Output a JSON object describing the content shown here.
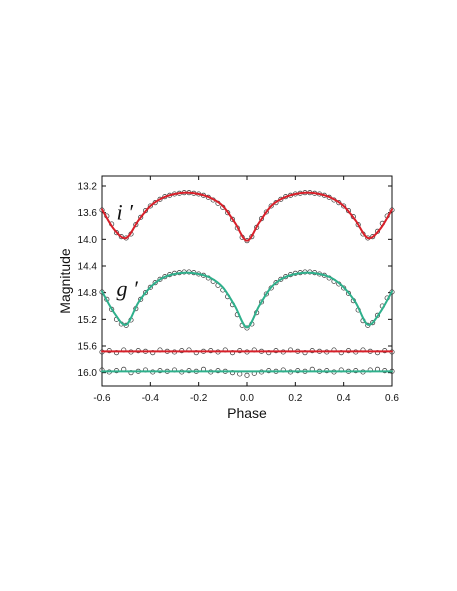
{
  "chart_data": {
    "type": "scatter",
    "title": "",
    "xlabel": "Phase",
    "ylabel": "Magnitude",
    "xlim": [
      -0.6,
      0.6
    ],
    "ylim": [
      16.2,
      13.05
    ],
    "y_inverted": true,
    "grid": false,
    "x_ticks": [
      "-0.6",
      "-0.4",
      "-0.2",
      "0.0",
      "0.2",
      "0.4",
      "0.6"
    ],
    "y_ticks": [
      "13.2",
      "13.6",
      "14.0",
      "14.4",
      "14.8",
      "15.2",
      "15.6",
      "16.0"
    ],
    "annotations": [
      {
        "text": "i ′",
        "x": -0.54,
        "y": 13.7
      },
      {
        "text": "g ′",
        "x": -0.54,
        "y": 14.85
      }
    ],
    "series": [
      {
        "color": "#d8202a",
        "role": "light curve model",
        "x": [
          -0.6,
          -0.55,
          -0.5,
          -0.45,
          -0.4,
          -0.35,
          -0.3,
          -0.25,
          -0.2,
          -0.15,
          -0.1,
          -0.05,
          0.0,
          0.05,
          0.1,
          0.15,
          0.2,
          0.25,
          0.3,
          0.35,
          0.4,
          0.45,
          0.5,
          0.55,
          0.6
        ],
        "y": [
          13.55,
          13.85,
          13.98,
          13.72,
          13.5,
          13.38,
          13.32,
          13.3,
          13.32,
          13.38,
          13.5,
          13.75,
          14.02,
          13.75,
          13.5,
          13.38,
          13.32,
          13.3,
          13.32,
          13.38,
          13.5,
          13.72,
          13.98,
          13.85,
          13.55
        ]
      },
      {
        "color": "#2fb08c",
        "role": "light curve model",
        "x": [
          -0.6,
          -0.55,
          -0.5,
          -0.45,
          -0.4,
          -0.35,
          -0.3,
          -0.25,
          -0.2,
          -0.15,
          -0.1,
          -0.05,
          0.0,
          0.05,
          0.1,
          0.15,
          0.2,
          0.25,
          0.3,
          0.35,
          0.4,
          0.45,
          0.5,
          0.55,
          0.6
        ],
        "y": [
          14.78,
          15.1,
          15.28,
          14.95,
          14.72,
          14.58,
          14.52,
          14.5,
          14.52,
          14.58,
          14.72,
          15.0,
          15.32,
          15.0,
          14.72,
          14.58,
          14.52,
          14.5,
          14.52,
          14.58,
          14.72,
          14.95,
          15.28,
          15.1,
          14.78
        ]
      },
      {
        "color": "#d8202a",
        "role": "residual reference",
        "x": [
          -0.6,
          0.6
        ],
        "y": [
          15.68,
          15.68
        ]
      },
      {
        "color": "#2fb08c",
        "role": "residual reference",
        "x": [
          -0.6,
          0.6
        ],
        "y": [
          15.98,
          15.98
        ]
      }
    ],
    "observations": [
      {
        "band": "i ′",
        "marker": "open circle",
        "x": [
          -0.6,
          -0.58,
          -0.56,
          -0.54,
          -0.52,
          -0.5,
          -0.48,
          -0.46,
          -0.44,
          -0.42,
          -0.4,
          -0.38,
          -0.36,
          -0.34,
          -0.32,
          -0.3,
          -0.28,
          -0.26,
          -0.24,
          -0.22,
          -0.2,
          -0.18,
          -0.16,
          -0.14,
          -0.12,
          -0.1,
          -0.08,
          -0.06,
          -0.04,
          -0.02,
          0.0,
          0.02,
          0.04,
          0.06,
          0.08,
          0.1,
          0.12,
          0.14,
          0.16,
          0.18,
          0.2,
          0.22,
          0.24,
          0.26,
          0.28,
          0.3,
          0.32,
          0.34,
          0.36,
          0.38,
          0.4,
          0.42,
          0.44,
          0.46,
          0.48,
          0.5,
          0.52,
          0.54,
          0.56,
          0.58,
          0.6
        ],
        "y": [
          13.56,
          13.65,
          13.77,
          13.9,
          13.96,
          13.98,
          13.92,
          13.78,
          13.67,
          13.57,
          13.5,
          13.45,
          13.4,
          13.36,
          13.34,
          13.32,
          13.31,
          13.3,
          13.3,
          13.31,
          13.32,
          13.34,
          13.37,
          13.41,
          13.46,
          13.52,
          13.6,
          13.7,
          13.83,
          13.97,
          14.02,
          13.96,
          13.82,
          13.69,
          13.59,
          13.5,
          13.45,
          13.4,
          13.36,
          13.34,
          13.32,
          13.31,
          13.3,
          13.3,
          13.31,
          13.32,
          13.34,
          13.37,
          13.41,
          13.45,
          13.5,
          13.57,
          13.66,
          13.78,
          13.92,
          13.98,
          13.96,
          13.88,
          13.76,
          13.65,
          13.56
        ]
      },
      {
        "band": "g ′",
        "marker": "open circle",
        "x": [
          -0.6,
          -0.58,
          -0.56,
          -0.54,
          -0.52,
          -0.5,
          -0.48,
          -0.46,
          -0.44,
          -0.42,
          -0.4,
          -0.38,
          -0.36,
          -0.34,
          -0.32,
          -0.3,
          -0.28,
          -0.26,
          -0.24,
          -0.22,
          -0.2,
          -0.18,
          -0.16,
          -0.14,
          -0.12,
          -0.1,
          -0.08,
          -0.06,
          -0.04,
          -0.02,
          0.0,
          0.02,
          0.04,
          0.06,
          0.08,
          0.1,
          0.12,
          0.14,
          0.16,
          0.18,
          0.2,
          0.22,
          0.24,
          0.26,
          0.28,
          0.3,
          0.32,
          0.34,
          0.36,
          0.38,
          0.4,
          0.42,
          0.44,
          0.46,
          0.48,
          0.5,
          0.52,
          0.54,
          0.56,
          0.58,
          0.6
        ],
        "y": [
          14.79,
          14.9,
          15.05,
          15.2,
          15.27,
          15.29,
          15.21,
          15.04,
          14.9,
          14.8,
          14.72,
          14.65,
          14.6,
          14.56,
          14.53,
          14.51,
          14.5,
          14.49,
          14.49,
          14.5,
          14.52,
          14.54,
          14.58,
          14.63,
          14.69,
          14.76,
          14.86,
          14.98,
          15.13,
          15.29,
          15.33,
          15.27,
          15.1,
          14.94,
          14.82,
          14.73,
          14.65,
          14.6,
          14.56,
          14.53,
          14.51,
          14.5,
          14.49,
          14.49,
          14.5,
          14.52,
          14.54,
          14.58,
          14.63,
          14.67,
          14.73,
          14.81,
          14.92,
          15.06,
          15.22,
          15.29,
          15.25,
          15.14,
          15.0,
          14.88,
          14.79
        ]
      },
      {
        "band": "i ′ residuals",
        "marker": "open circle",
        "x": [
          -0.6,
          -0.57,
          -0.54,
          -0.51,
          -0.48,
          -0.45,
          -0.42,
          -0.39,
          -0.36,
          -0.33,
          -0.3,
          -0.27,
          -0.24,
          -0.21,
          -0.18,
          -0.15,
          -0.12,
          -0.09,
          -0.06,
          -0.03,
          0.0,
          0.03,
          0.06,
          0.09,
          0.12,
          0.15,
          0.18,
          0.21,
          0.24,
          0.27,
          0.3,
          0.33,
          0.36,
          0.39,
          0.42,
          0.45,
          0.48,
          0.51,
          0.54,
          0.57,
          0.6
        ],
        "y": [
          15.69,
          15.67,
          15.7,
          15.66,
          15.69,
          15.67,
          15.68,
          15.7,
          15.66,
          15.68,
          15.69,
          15.67,
          15.66,
          15.7,
          15.68,
          15.67,
          15.69,
          15.66,
          15.7,
          15.67,
          15.69,
          15.66,
          15.68,
          15.7,
          15.67,
          15.69,
          15.66,
          15.68,
          15.7,
          15.67,
          15.68,
          15.69,
          15.66,
          15.7,
          15.67,
          15.69,
          15.66,
          15.68,
          15.7,
          15.67,
          15.69
        ]
      },
      {
        "band": "g ′ residuals",
        "marker": "open circle",
        "x": [
          -0.6,
          -0.57,
          -0.54,
          -0.51,
          -0.48,
          -0.45,
          -0.42,
          -0.39,
          -0.36,
          -0.33,
          -0.3,
          -0.27,
          -0.24,
          -0.21,
          -0.18,
          -0.15,
          -0.12,
          -0.09,
          -0.06,
          -0.03,
          0.0,
          0.03,
          0.06,
          0.09,
          0.12,
          0.15,
          0.18,
          0.21,
          0.24,
          0.27,
          0.3,
          0.33,
          0.36,
          0.39,
          0.42,
          0.45,
          0.48,
          0.51,
          0.54,
          0.57,
          0.6
        ],
        "y": [
          15.96,
          15.99,
          15.97,
          15.95,
          16.0,
          15.98,
          15.96,
          15.99,
          15.97,
          15.98,
          15.96,
          15.99,
          15.97,
          15.98,
          15.95,
          15.99,
          15.97,
          15.98,
          16.0,
          16.02,
          16.04,
          16.01,
          15.99,
          15.97,
          15.98,
          15.96,
          15.99,
          15.97,
          15.98,
          15.95,
          15.98,
          15.97,
          15.99,
          15.96,
          15.98,
          15.97,
          15.99,
          15.96,
          15.95,
          15.97,
          15.98
        ]
      }
    ]
  }
}
